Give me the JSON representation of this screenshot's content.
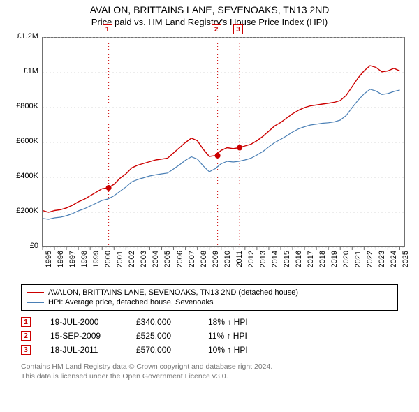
{
  "title": {
    "line1": "AVALON, BRITTAINS LANE, SEVENOAKS, TN13 2ND",
    "line2": "Price paid vs. HM Land Registry's House Price Index (HPI)"
  },
  "chart": {
    "type": "line",
    "background_color": "#ffffff",
    "grid_color": "#d9d9d9",
    "axis_color": "#707070",
    "x": {
      "min": 1995,
      "max": 2025.5,
      "ticks": [
        1995,
        1996,
        1997,
        1998,
        1999,
        2000,
        2001,
        2002,
        2003,
        2004,
        2005,
        2006,
        2007,
        2008,
        2009,
        2010,
        2011,
        2012,
        2013,
        2014,
        2015,
        2016,
        2017,
        2018,
        2019,
        2020,
        2021,
        2022,
        2023,
        2024,
        2025
      ],
      "tick_labels": [
        "1995",
        "1996",
        "1997",
        "1998",
        "1999",
        "2000",
        "2001",
        "2002",
        "2003",
        "2004",
        "2005",
        "2006",
        "2007",
        "2008",
        "2009",
        "2010",
        "2011",
        "2012",
        "2013",
        "2014",
        "2015",
        "2016",
        "2017",
        "2018",
        "2019",
        "2020",
        "2021",
        "2022",
        "2023",
        "2024",
        "2025"
      ]
    },
    "y": {
      "min": 0,
      "max": 1200000,
      "ticks": [
        0,
        200000,
        400000,
        600000,
        800000,
        1000000,
        1200000
      ],
      "tick_labels": [
        "£0",
        "£200K",
        "£400K",
        "£600K",
        "£800K",
        "£1M",
        "£1.2M"
      ]
    },
    "series": [
      {
        "id": "subject",
        "label": "AVALON, BRITTAINS LANE, SEVENOAKS, TN13 2ND (detached house)",
        "color": "#cc0000",
        "width": 1.4,
        "points": [
          [
            1995,
            210000
          ],
          [
            1995.5,
            200000
          ],
          [
            1996,
            210000
          ],
          [
            1996.5,
            215000
          ],
          [
            1997,
            225000
          ],
          [
            1997.5,
            240000
          ],
          [
            1998,
            260000
          ],
          [
            1998.5,
            275000
          ],
          [
            1999,
            295000
          ],
          [
            1999.5,
            315000
          ],
          [
            2000,
            335000
          ],
          [
            2000.5,
            340000
          ],
          [
            2001,
            360000
          ],
          [
            2001.5,
            395000
          ],
          [
            2002,
            420000
          ],
          [
            2002.5,
            455000
          ],
          [
            2003,
            470000
          ],
          [
            2003.5,
            480000
          ],
          [
            2004,
            490000
          ],
          [
            2004.5,
            500000
          ],
          [
            2005,
            505000
          ],
          [
            2005.5,
            510000
          ],
          [
            2006,
            540000
          ],
          [
            2006.5,
            570000
          ],
          [
            2007,
            600000
          ],
          [
            2007.5,
            625000
          ],
          [
            2008,
            610000
          ],
          [
            2008.5,
            560000
          ],
          [
            2009,
            520000
          ],
          [
            2009.5,
            525000
          ],
          [
            2010,
            555000
          ],
          [
            2010.5,
            570000
          ],
          [
            2011,
            565000
          ],
          [
            2011.5,
            570000
          ],
          [
            2012,
            580000
          ],
          [
            2012.5,
            590000
          ],
          [
            2013,
            610000
          ],
          [
            2013.5,
            635000
          ],
          [
            2014,
            665000
          ],
          [
            2014.5,
            695000
          ],
          [
            2015,
            715000
          ],
          [
            2015.5,
            740000
          ],
          [
            2016,
            765000
          ],
          [
            2016.5,
            785000
          ],
          [
            2017,
            800000
          ],
          [
            2017.5,
            810000
          ],
          [
            2018,
            815000
          ],
          [
            2018.5,
            820000
          ],
          [
            2019,
            825000
          ],
          [
            2019.5,
            830000
          ],
          [
            2020,
            840000
          ],
          [
            2020.5,
            870000
          ],
          [
            2021,
            920000
          ],
          [
            2021.5,
            970000
          ],
          [
            2022,
            1010000
          ],
          [
            2022.5,
            1040000
          ],
          [
            2023,
            1030000
          ],
          [
            2023.5,
            1005000
          ],
          [
            2024,
            1010000
          ],
          [
            2024.5,
            1025000
          ],
          [
            2025,
            1010000
          ]
        ]
      },
      {
        "id": "hpi",
        "label": "HPI: Average price, detached house, Sevenoaks",
        "color": "#4a7fb5",
        "width": 1.2,
        "points": [
          [
            1995,
            165000
          ],
          [
            1995.5,
            160000
          ],
          [
            1996,
            168000
          ],
          [
            1996.5,
            172000
          ],
          [
            1997,
            180000
          ],
          [
            1997.5,
            192000
          ],
          [
            1998,
            208000
          ],
          [
            1998.5,
            220000
          ],
          [
            1999,
            236000
          ],
          [
            1999.5,
            252000
          ],
          [
            2000,
            268000
          ],
          [
            2000.5,
            276000
          ],
          [
            2001,
            295000
          ],
          [
            2001.5,
            320000
          ],
          [
            2002,
            345000
          ],
          [
            2002.5,
            375000
          ],
          [
            2003,
            388000
          ],
          [
            2003.5,
            398000
          ],
          [
            2004,
            408000
          ],
          [
            2004.5,
            415000
          ],
          [
            2005,
            420000
          ],
          [
            2005.5,
            425000
          ],
          [
            2006,
            448000
          ],
          [
            2006.5,
            472000
          ],
          [
            2007,
            498000
          ],
          [
            2007.5,
            518000
          ],
          [
            2008,
            505000
          ],
          [
            2008.5,
            465000
          ],
          [
            2009,
            432000
          ],
          [
            2009.5,
            450000
          ],
          [
            2010,
            478000
          ],
          [
            2010.5,
            492000
          ],
          [
            2011,
            488000
          ],
          [
            2011.5,
            492000
          ],
          [
            2012,
            500000
          ],
          [
            2012.5,
            510000
          ],
          [
            2013,
            528000
          ],
          [
            2013.5,
            548000
          ],
          [
            2014,
            575000
          ],
          [
            2014.5,
            600000
          ],
          [
            2015,
            618000
          ],
          [
            2015.5,
            638000
          ],
          [
            2016,
            660000
          ],
          [
            2016.5,
            678000
          ],
          [
            2017,
            690000
          ],
          [
            2017.5,
            700000
          ],
          [
            2018,
            705000
          ],
          [
            2018.5,
            710000
          ],
          [
            2019,
            713000
          ],
          [
            2019.5,
            718000
          ],
          [
            2020,
            728000
          ],
          [
            2020.5,
            755000
          ],
          [
            2021,
            800000
          ],
          [
            2021.5,
            842000
          ],
          [
            2022,
            878000
          ],
          [
            2022.5,
            905000
          ],
          [
            2023,
            895000
          ],
          [
            2023.5,
            875000
          ],
          [
            2024,
            880000
          ],
          [
            2024.5,
            892000
          ],
          [
            2025,
            900000
          ]
        ]
      }
    ],
    "sale_markers": [
      {
        "n": "1",
        "year": 2000.55,
        "price": 340000
      },
      {
        "n": "2",
        "year": 2009.7,
        "price": 525000
      },
      {
        "n": "3",
        "year": 2011.55,
        "price": 570000
      }
    ],
    "marker_line_color": "#cc0000",
    "marker_dot_color": "#cc0000",
    "label_fontsize": 11
  },
  "legend": {
    "items": [
      {
        "color": "#cc0000",
        "label": "AVALON, BRITTAINS LANE, SEVENOAKS, TN13 2ND (detached house)"
      },
      {
        "color": "#4a7fb5",
        "label": "HPI: Average price, detached house, Sevenoaks"
      }
    ]
  },
  "sales": [
    {
      "n": "1",
      "date": "19-JUL-2000",
      "price": "£340,000",
      "delta": "18% ↑ HPI"
    },
    {
      "n": "2",
      "date": "15-SEP-2009",
      "price": "£525,000",
      "delta": "11% ↑ HPI"
    },
    {
      "n": "3",
      "date": "18-JUL-2011",
      "price": "£570,000",
      "delta": "10% ↑ HPI"
    }
  ],
  "footer": {
    "line1": "Contains HM Land Registry data © Crown copyright and database right 2024.",
    "line2": "This data is licensed under the Open Government Licence v3.0."
  }
}
